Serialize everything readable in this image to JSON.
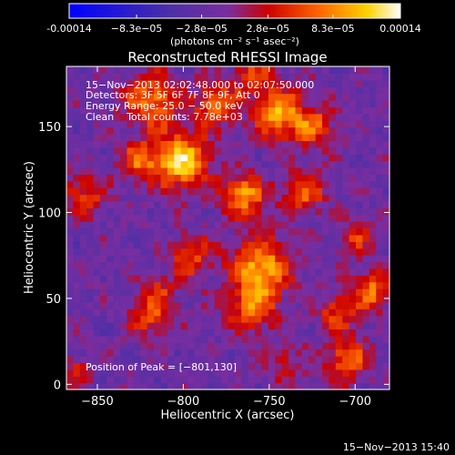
{
  "colorbar": {
    "tick_labels": [
      "-0.00014",
      "−8.3e−05",
      "−2.8e−05",
      "2.8e−05",
      "8.3e−05",
      "0.00014"
    ],
    "tick_values": [
      -0.00014,
      -8.3e-05,
      -2.8e-05,
      2.8e-05,
      8.3e-05,
      0.00014
    ],
    "unit_label": "(photons cm⁻² s⁻¹ asec⁻²)",
    "colors": [
      "#0000ff",
      "#4b2fa6",
      "#7a2ea0",
      "#cc0000",
      "#ff6a00",
      "#ffd200",
      "#ffffff"
    ]
  },
  "info": {
    "time_range": "15−Nov−2013 02:02:48.000 to 02:07:50.000",
    "detectors": "Detectors: 3F 5F 6F 7F 8F 9F, Att 0",
    "energy": "Energy Range: 25.0 − 50.0 keV",
    "clean": "Clean    Total counts: 7.78e+03",
    "peak": "Position of Peak = [−801,130]"
  },
  "footer": {
    "timestamp": "15−Nov−2013 15:40"
  },
  "chart_data": {
    "type": "heatmap",
    "title": "Reconstructed RHESSI Image",
    "xlabel": "Heliocentric X (arcsec)",
    "ylabel": "Heliocentric Y (arcsec)",
    "xlim": [
      -868,
      -680
    ],
    "ylim": [
      -3,
      185
    ],
    "x_ticks": [
      -850,
      -800,
      -750,
      -700
    ],
    "y_ticks": [
      0,
      50,
      100,
      150
    ],
    "x_tick_labels": [
      "−850",
      "−800",
      "−750",
      "−700"
    ],
    "y_tick_labels": [
      "0",
      "50",
      "100",
      "150"
    ],
    "value_range": [
      -0.00014,
      0.00014
    ],
    "peak_position": [
      -801,
      130
    ],
    "sources": [
      {
        "x": -801,
        "y": 130,
        "peak": 0.00014,
        "width": 11
      },
      {
        "x": -818,
        "y": 165,
        "peak": 0.0001,
        "width": 11
      },
      {
        "x": -781,
        "y": 163,
        "peak": 9e-05,
        "width": 9
      },
      {
        "x": -745,
        "y": 158,
        "peak": 0.00011,
        "width": 10
      },
      {
        "x": -725,
        "y": 150,
        "peak": 8e-05,
        "width": 9
      },
      {
        "x": -765,
        "y": 110,
        "peak": 0.00011,
        "width": 9
      },
      {
        "x": -730,
        "y": 112,
        "peak": 8e-05,
        "width": 9
      },
      {
        "x": -755,
        "y": 68,
        "peak": 0.00012,
        "width": 12
      },
      {
        "x": -760,
        "y": 44,
        "peak": 8e-05,
        "width": 10
      },
      {
        "x": -825,
        "y": 130,
        "peak": 8e-05,
        "width": 8
      },
      {
        "x": -858,
        "y": 110,
        "peak": 7e-05,
        "width": 9
      },
      {
        "x": -795,
        "y": 75,
        "peak": 7e-05,
        "width": 9
      },
      {
        "x": -815,
        "y": 52,
        "peak": 6e-05,
        "width": 8
      },
      {
        "x": -820,
        "y": 38,
        "peak": 6e-05,
        "width": 8
      },
      {
        "x": -710,
        "y": 42,
        "peak": 7e-05,
        "width": 8
      },
      {
        "x": -690,
        "y": 55,
        "peak": 9e-05,
        "width": 8
      },
      {
        "x": -705,
        "y": 15,
        "peak": 9e-05,
        "width": 9
      },
      {
        "x": -740,
        "y": 12,
        "peak": 5e-05,
        "width": 8
      },
      {
        "x": -862,
        "y": 8,
        "peak": 6e-05,
        "width": 6
      },
      {
        "x": -760,
        "y": 180,
        "peak": 7e-05,
        "width": 8
      },
      {
        "x": -700,
        "y": 85,
        "peak": 6e-05,
        "width": 7
      }
    ]
  }
}
